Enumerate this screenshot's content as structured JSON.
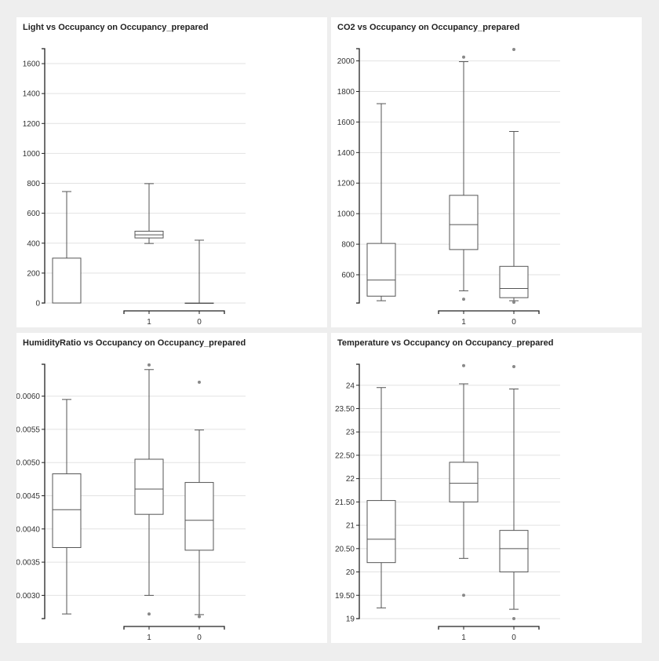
{
  "chart_data": [
    {
      "type": "box",
      "title": "Light vs Occupancy on Occupancy_prepared",
      "ylim": [
        0,
        1700
      ],
      "yticks": [
        0,
        200,
        400,
        600,
        800,
        1000,
        1200,
        1400,
        1600
      ],
      "ytick_labels": [
        "0",
        "200",
        "400",
        "600",
        "800",
        "1000",
        "1200",
        "1400",
        "1600"
      ],
      "categories": [
        "",
        "1",
        "0"
      ],
      "boxes": [
        {
          "whisker_low": 0,
          "q1": 0,
          "median": 0,
          "q3": 300,
          "whisker_high": 745,
          "outliers": []
        },
        {
          "whisker_low": 398,
          "q1": 435,
          "median": 456,
          "q3": 480,
          "whisker_high": 798,
          "outliers": []
        },
        {
          "whisker_low": 0,
          "q1": 0,
          "median": 0,
          "q3": 0,
          "whisker_high": 420,
          "outliers": []
        }
      ],
      "grid": true
    },
    {
      "type": "box",
      "title": "CO2 vs Occupancy on Occupancy_prepared",
      "ylim": [
        415,
        2080
      ],
      "yticks": [
        600,
        800,
        1000,
        1200,
        1400,
        1600,
        1800,
        2000
      ],
      "ytick_labels": [
        "600",
        "800",
        "1000",
        "1200",
        "1400",
        "1600",
        "1800",
        "2000"
      ],
      "categories": [
        "",
        "1",
        "0"
      ],
      "boxes": [
        {
          "whisker_low": 430,
          "q1": 460,
          "median": 565,
          "q3": 805,
          "whisker_high": 1720,
          "outliers": []
        },
        {
          "whisker_low": 495,
          "q1": 765,
          "median": 928,
          "q3": 1120,
          "whisker_high": 1995,
          "outliers": [
            2025,
            440
          ]
        },
        {
          "whisker_low": 430,
          "q1": 450,
          "median": 510,
          "q3": 655,
          "whisker_high": 1538,
          "outliers": [
            2075,
            420
          ]
        }
      ],
      "grid": true
    },
    {
      "type": "box",
      "title": "HumidityRatio vs Occupancy on Occupancy_prepared",
      "ylim": [
        0.00265,
        0.00648
      ],
      "yticks": [
        0.003,
        0.0035,
        0.004,
        0.0045,
        0.005,
        0.0055,
        0.006
      ],
      "ytick_labels": [
        "0.0030",
        "0.0035",
        "0.0040",
        "0.0045",
        "0.0050",
        "0.0055",
        "0.0060"
      ],
      "categories": [
        "",
        "1",
        "0"
      ],
      "boxes": [
        {
          "whisker_low": 0.00272,
          "q1": 0.00372,
          "median": 0.00429,
          "q3": 0.00483,
          "whisker_high": 0.00595,
          "outliers": []
        },
        {
          "whisker_low": 0.003,
          "q1": 0.00422,
          "median": 0.0046,
          "q3": 0.00505,
          "whisker_high": 0.0064,
          "outliers": [
            0.00647,
            0.00272
          ]
        },
        {
          "whisker_low": 0.00271,
          "q1": 0.00368,
          "median": 0.00413,
          "q3": 0.0047,
          "whisker_high": 0.00549,
          "outliers": [
            0.00621,
            0.00268
          ]
        }
      ],
      "grid": true
    },
    {
      "type": "box",
      "title": "Temperature vs Occupancy on Occupancy_prepared",
      "ylim": [
        19,
        24.45
      ],
      "yticks": [
        19,
        19.5,
        20,
        20.5,
        21,
        21.5,
        22,
        22.5,
        23,
        23.5,
        24
      ],
      "ytick_labels": [
        "19",
        "19.50",
        "20",
        "20.50",
        "21",
        "21.50",
        "22",
        "22.50",
        "23",
        "23.50",
        "24"
      ],
      "categories": [
        "",
        "1",
        "0"
      ],
      "boxes": [
        {
          "whisker_low": 19.23,
          "q1": 20.2,
          "median": 20.7,
          "q3": 21.53,
          "whisker_high": 23.95,
          "outliers": []
        },
        {
          "whisker_low": 20.29,
          "q1": 21.5,
          "median": 21.9,
          "q3": 22.35,
          "whisker_high": 24.03,
          "outliers": [
            24.42,
            19.5
          ]
        },
        {
          "whisker_low": 19.2,
          "q1": 20,
          "median": 20.5,
          "q3": 20.89,
          "whisker_high": 23.92,
          "outliers": [
            24.4,
            19
          ]
        }
      ],
      "grid": true
    }
  ]
}
